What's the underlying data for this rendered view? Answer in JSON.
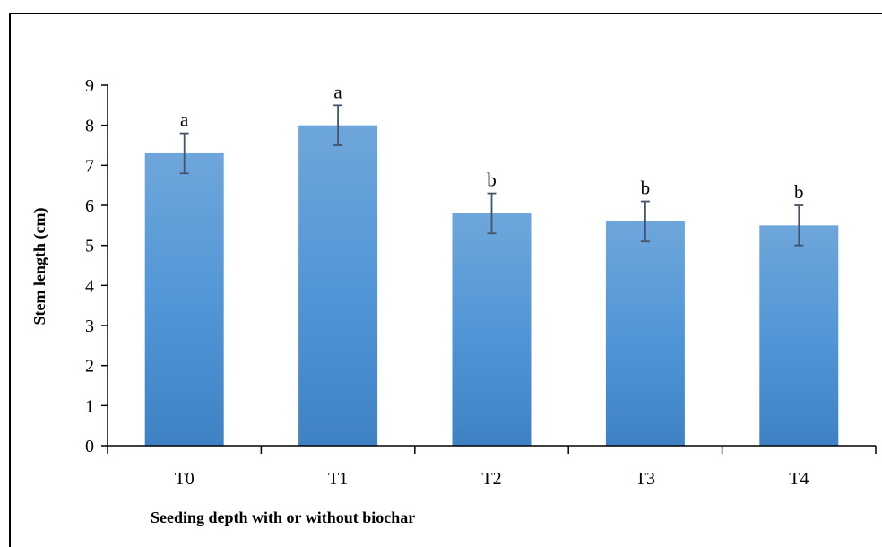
{
  "chart_data": {
    "type": "bar",
    "title": "",
    "xlabel": "Seeding depth with or without biochar",
    "ylabel": "Stem length (cm)",
    "categories": [
      "T0",
      "T1",
      "T2",
      "T3",
      "T4"
    ],
    "values": [
      7.3,
      8.0,
      5.8,
      5.6,
      5.5
    ],
    "error": [
      0.5,
      0.5,
      0.5,
      0.5,
      0.5
    ],
    "significance_letters": [
      "a",
      "a",
      "b",
      "b",
      "b"
    ],
    "ylim": [
      0,
      9
    ],
    "yticks": [
      "0",
      "1",
      "2",
      "3",
      "4",
      "5",
      "6",
      "7",
      "8",
      "9"
    ],
    "grid": false,
    "legend": "none",
    "bar_color": "#5b9bd5",
    "error_bar_color": "#44546a"
  }
}
